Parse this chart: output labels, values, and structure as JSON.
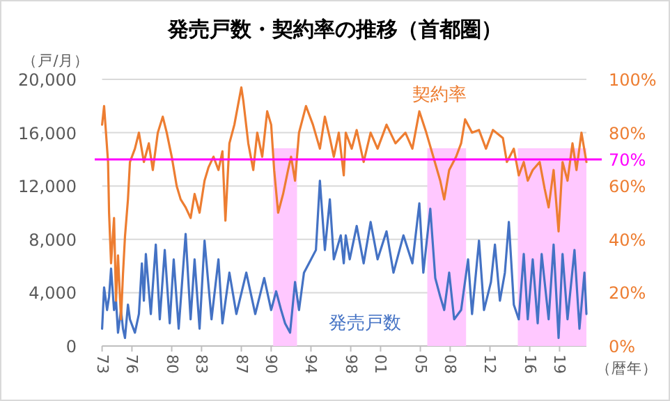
{
  "chart_data": {
    "type": "line",
    "title": "発売戸数・契約率の推移（首都圏）",
    "ylabel": "（戸/月）",
    "xlabel": "（暦年）",
    "xlim": [
      1973,
      2021.7
    ],
    "xticks": [
      {
        "value": 1973,
        "label": "73"
      },
      {
        "value": 1976,
        "label": "76"
      },
      {
        "value": 1980,
        "label": "80"
      },
      {
        "value": 1983,
        "label": "83"
      },
      {
        "value": 1987,
        "label": "87"
      },
      {
        "value": 1990,
        "label": "90"
      },
      {
        "value": 1994,
        "label": "94"
      },
      {
        "value": 1998,
        "label": "98"
      },
      {
        "value": 2001,
        "label": "01"
      },
      {
        "value": 2005,
        "label": "05"
      },
      {
        "value": 2008,
        "label": "08"
      },
      {
        "value": 2012,
        "label": "12"
      },
      {
        "value": 2016,
        "label": "16"
      },
      {
        "value": 2019,
        "label": "19"
      }
    ],
    "ylim": [
      0,
      20000
    ],
    "yticks": [
      {
        "value": 0,
        "label": "0"
      },
      {
        "value": 4000,
        "label": "4,000"
      },
      {
        "value": 8000,
        "label": "8,000"
      },
      {
        "value": 12000,
        "label": "12,000"
      },
      {
        "value": 16000,
        "label": "16,000"
      },
      {
        "value": 20000,
        "label": "20,000"
      }
    ],
    "y2lim": [
      0,
      100
    ],
    "y2ticks": [
      {
        "value": 0,
        "label": "0%"
      },
      {
        "value": 20,
        "label": "20%"
      },
      {
        "value": 40,
        "label": "40%"
      },
      {
        "value": 60,
        "label": "60%"
      },
      {
        "value": 80,
        "label": "80%"
      },
      {
        "value": 100,
        "label": "100%"
      }
    ],
    "grid": "y",
    "series": [
      {
        "name": "発売戸数",
        "color": "#4472c4",
        "x": [
          1973.0,
          1973.2,
          1973.5,
          1973.7,
          1973.9,
          1974.2,
          1974.4,
          1974.6,
          1974.9,
          1975.1,
          1975.3,
          1975.6,
          1975.8,
          1976.3,
          1976.7,
          1977.0,
          1977.2,
          1977.4,
          1977.9,
          1978.4,
          1978.8,
          1979.3,
          1979.8,
          1980.2,
          1980.7,
          1981.4,
          1981.9,
          1982.3,
          1982.8,
          1983.3,
          1984.0,
          1984.7,
          1985.1,
          1985.8,
          1986.5,
          1987.5,
          1988.4,
          1989.3,
          1990.0,
          1990.5,
          1991.0,
          1991.4,
          1991.9,
          1992.4,
          1992.8,
          1993.3,
          1993.8,
          1994.5,
          1994.9,
          1995.4,
          1995.9,
          1996.3,
          1997.0,
          1997.3,
          1997.5,
          1997.9,
          1998.6,
          1999.3,
          2000.0,
          2000.7,
          2001.6,
          2002.3,
          2003.3,
          2004.2,
          2004.9,
          2005.3,
          2006.0,
          2006.5,
          2007.0,
          2007.4,
          2007.9,
          2008.4,
          2009.1,
          2009.8,
          2010.2,
          2010.9,
          2011.4,
          2012.1,
          2012.5,
          2013.0,
          2013.5,
          2013.9,
          2014.4,
          2014.9,
          2015.4,
          2015.8,
          2016.3,
          2016.8,
          2017.2,
          2017.9,
          2018.4,
          2018.9,
          2019.3,
          2019.8,
          2020.5,
          2021.0,
          2021.5,
          2021.7
        ],
        "values": [
          1300,
          4400,
          2700,
          3700,
          5800,
          2700,
          3400,
          1000,
          2700,
          1300,
          600,
          3100,
          2000,
          1000,
          2400,
          6200,
          3400,
          6900,
          2400,
          7600,
          2000,
          7200,
          1700,
          6500,
          1300,
          8400,
          2000,
          6500,
          1300,
          7900,
          2000,
          6500,
          1700,
          5500,
          2400,
          5500,
          2400,
          5100,
          2700,
          4100,
          2700,
          1700,
          1000,
          4800,
          2700,
          5500,
          6200,
          7200,
          12400,
          7200,
          11000,
          6500,
          8300,
          6200,
          8300,
          6500,
          9000,
          6200,
          9300,
          6500,
          8600,
          5500,
          8300,
          6200,
          10700,
          5500,
          10300,
          5100,
          3700,
          2700,
          5500,
          2000,
          2700,
          6500,
          2400,
          7900,
          2700,
          4800,
          7600,
          3400,
          5500,
          9300,
          3100,
          2000,
          6900,
          2000,
          6500,
          1700,
          6900,
          2000,
          7600,
          600,
          6900,
          2000,
          7200,
          1300,
          5500,
          2400
        ]
      },
      {
        "name": "契約率",
        "color": "#ed7d31",
        "axis": "y2",
        "x": [
          1973.0,
          1973.2,
          1973.6,
          1973.7,
          1973.9,
          1974.2,
          1974.4,
          1974.6,
          1974.9,
          1975.1,
          1975.3,
          1975.6,
          1975.8,
          1976.3,
          1976.7,
          1977.2,
          1977.7,
          1978.1,
          1978.6,
          1979.1,
          1979.5,
          1980.0,
          1980.5,
          1980.9,
          1981.4,
          1981.9,
          1982.3,
          1982.8,
          1983.3,
          1983.7,
          1984.2,
          1984.7,
          1985.1,
          1985.4,
          1985.8,
          1986.3,
          1987.0,
          1987.2,
          1987.7,
          1988.2,
          1988.6,
          1989.1,
          1989.6,
          1990.0,
          1990.3,
          1990.7,
          1991.2,
          1991.7,
          1992.0,
          1992.4,
          1992.8,
          1993.5,
          1994.2,
          1994.9,
          1995.4,
          1995.9,
          1996.3,
          1996.8,
          1997.3,
          1997.5,
          1998.1,
          1998.6,
          1999.3,
          2000.0,
          2000.7,
          2001.6,
          2002.5,
          2003.5,
          2004.2,
          2004.9,
          2005.6,
          2006.3,
          2007.0,
          2007.4,
          2007.9,
          2008.6,
          2009.1,
          2009.5,
          2010.2,
          2010.9,
          2011.6,
          2012.3,
          2013.3,
          2013.7,
          2014.4,
          2014.9,
          2015.4,
          2015.8,
          2016.3,
          2017.0,
          2017.5,
          2017.9,
          2018.4,
          2018.9,
          2019.3,
          2019.8,
          2020.3,
          2020.7,
          2021.2,
          2021.7
        ],
        "values": [
          83,
          90,
          69,
          50,
          31,
          48,
          17,
          34,
          10,
          27,
          41,
          55,
          69,
          74,
          80,
          69,
          76,
          66,
          80,
          86,
          80,
          71,
          60,
          55,
          52,
          48,
          57,
          50,
          62,
          67,
          71,
          66,
          73,
          47,
          76,
          83,
          97,
          92,
          76,
          66,
          80,
          71,
          88,
          83,
          66,
          50,
          57,
          66,
          71,
          62,
          80,
          90,
          83,
          74,
          86,
          78,
          71,
          80,
          64,
          80,
          74,
          81,
          69,
          80,
          74,
          83,
          76,
          80,
          74,
          88,
          80,
          71,
          62,
          55,
          66,
          71,
          76,
          85,
          80,
          81,
          74,
          81,
          78,
          69,
          74,
          64,
          69,
          62,
          66,
          69,
          59,
          52,
          66,
          43,
          69,
          62,
          76,
          66,
          80,
          69
        ]
      }
    ],
    "ref_lines": [
      {
        "axis": "y2",
        "value": 70,
        "label": "70%",
        "color": "#ff00ff"
      }
    ],
    "bands": [
      {
        "axis": "x",
        "from": 1990.2,
        "to": 1992.6,
        "color": "#ffc8ff"
      },
      {
        "axis": "x",
        "from": 2005.7,
        "to": 2009.6,
        "color": "#ffc8ff"
      },
      {
        "axis": "x",
        "from": 2014.8,
        "to": 2021.7,
        "color": "#ffc8ff"
      }
    ]
  }
}
